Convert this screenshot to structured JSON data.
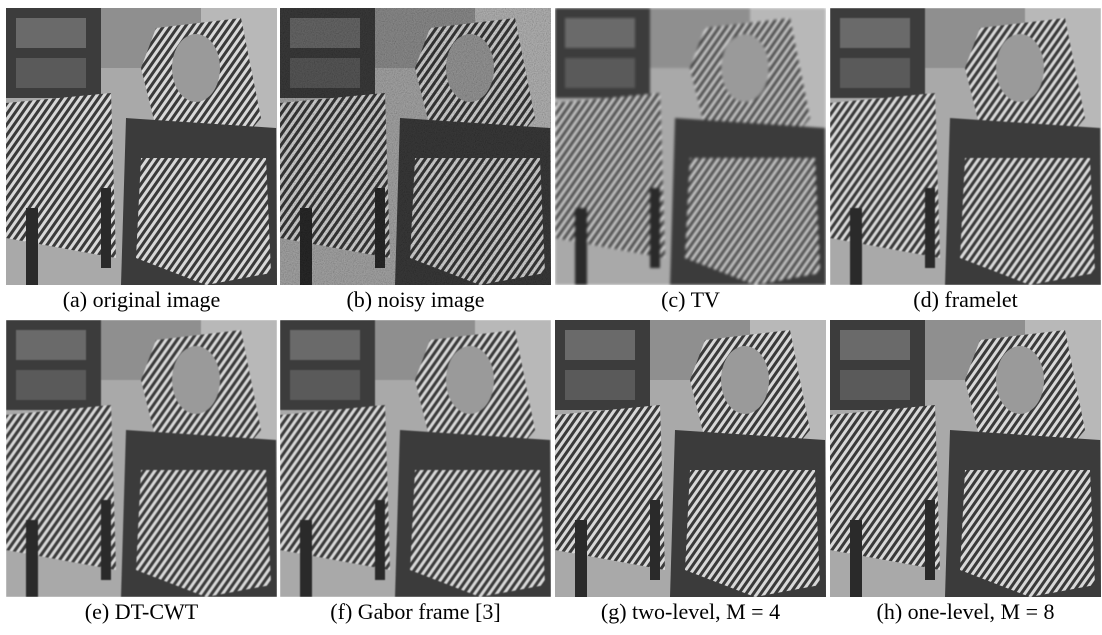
{
  "figure": {
    "panels": [
      {
        "caption": "(a) original image"
      },
      {
        "caption": "(b) noisy image"
      },
      {
        "caption": "(c) TV"
      },
      {
        "caption": "(d) framelet"
      },
      {
        "caption": "(e) DT-CWT"
      },
      {
        "caption": "(f) Gabor frame [3]"
      },
      {
        "caption": "(g) two-level, M = 4"
      },
      {
        "caption": "(h) one-level, M = 8"
      }
    ]
  }
}
